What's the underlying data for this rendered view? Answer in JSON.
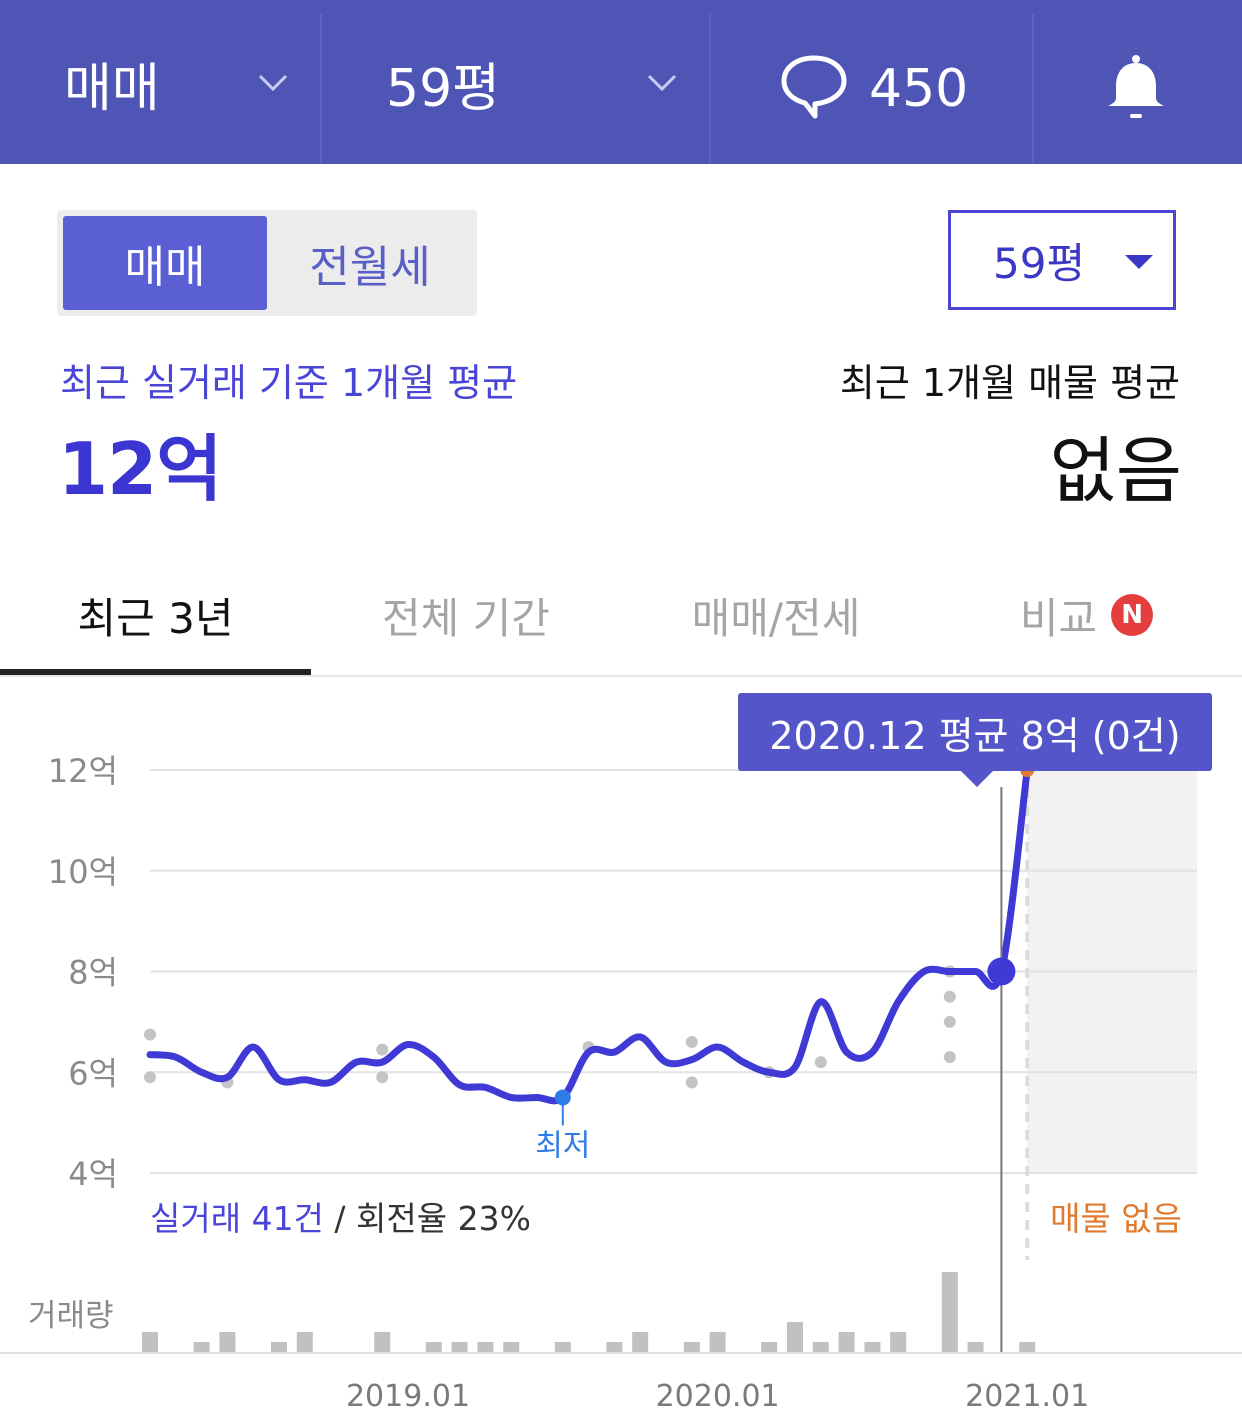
{
  "topbar": {
    "deal_type": "매매",
    "size": "59평",
    "comment_count": "450",
    "icons": [
      "chevron-down-icon",
      "speech-bubble-icon",
      "bell-icon"
    ]
  },
  "segment": {
    "active": "매매",
    "inactive": "전월세"
  },
  "size_select": {
    "value": "59평"
  },
  "summary": {
    "left_label": "최근 실거래 기준 1개월 평균",
    "left_value": "12억",
    "right_label": "최근 1개월 매물 평균",
    "right_value": "없음"
  },
  "tabs": [
    {
      "label": "최근 3년",
      "active": true
    },
    {
      "label": "전체 기간",
      "active": false
    },
    {
      "label": "매매/전세",
      "active": false
    },
    {
      "label": "비교",
      "active": false,
      "badge": "N"
    }
  ],
  "chart": {
    "tooltip": "2020.12 평균 8억 (0건)",
    "stats_trades": "실거래 41건",
    "stats_sep": " / ",
    "stats_turnover": "회전율 23%",
    "no_listing": "매물 없음",
    "volume_label": "거래량",
    "min_label": "최저"
  },
  "colors": {
    "header_bg": "#4f55b5",
    "accent": "#4a45d6",
    "line": "#3f3ad6",
    "orange": "#e07a2e",
    "badge_red": "#e53e3e"
  },
  "chart_data": {
    "type": "line",
    "y_unit": "억",
    "y_ticks": [
      "12억",
      "10억",
      "8억",
      "6억",
      "4억"
    ],
    "ylim": [
      4,
      12
    ],
    "x_ticks": [
      "2019.01",
      "2020.01",
      "2021.01"
    ],
    "series": [
      {
        "values": [
          [
            "2018.03",
            6.35
          ],
          [
            "2018.04",
            6.3
          ],
          [
            "2018.05",
            6.0
          ],
          [
            "2018.06",
            5.9
          ],
          [
            "2018.07",
            6.5
          ],
          [
            "2018.08",
            5.85
          ],
          [
            "2018.09",
            5.85
          ],
          [
            "2018.10",
            5.8
          ],
          [
            "2018.11",
            6.2
          ],
          [
            "2018.12",
            6.2
          ],
          [
            "2019.01",
            6.55
          ],
          [
            "2019.02",
            6.3
          ],
          [
            "2019.03",
            5.75
          ],
          [
            "2019.04",
            5.7
          ],
          [
            "2019.05",
            5.5
          ],
          [
            "2019.06",
            5.5
          ],
          [
            "2019.07",
            5.5
          ],
          [
            "2019.08",
            6.4
          ],
          [
            "2019.09",
            6.4
          ],
          [
            "2019.10",
            6.7
          ],
          [
            "2019.11",
            6.2
          ],
          [
            "2019.12",
            6.25
          ],
          [
            "2020.01",
            6.5
          ],
          [
            "2020.02",
            6.2
          ],
          [
            "2020.03",
            6.0
          ],
          [
            "2020.04",
            6.1
          ],
          [
            "2020.05",
            7.4
          ],
          [
            "2020.06",
            6.4
          ],
          [
            "2020.07",
            6.4
          ],
          [
            "2020.08",
            7.4
          ],
          [
            "2020.09",
            8.0
          ],
          [
            "2020.10",
            8.0
          ],
          [
            "2020.11",
            8.0
          ],
          [
            "2020.12",
            8.0
          ],
          [
            "2021.01",
            12.0
          ]
        ]
      }
    ],
    "scatter_points": [
      [
        "2018.03",
        6.75
      ],
      [
        "2018.03",
        5.9
      ],
      [
        "2018.06",
        5.8
      ],
      [
        "2018.12",
        6.45
      ],
      [
        "2018.12",
        5.9
      ],
      [
        "2019.08",
        6.5
      ],
      [
        "2019.12",
        6.6
      ],
      [
        "2019.12",
        5.8
      ],
      [
        "2020.03",
        6.0
      ],
      [
        "2020.05",
        6.2
      ],
      [
        "2020.10",
        8.0
      ],
      [
        "2020.10",
        7.5
      ],
      [
        "2020.10",
        7.0
      ],
      [
        "2020.10",
        6.3
      ]
    ],
    "highlight_point": [
      "2020.12",
      8.0
    ],
    "min_point": [
      "2019.07",
      5.5
    ],
    "volume": [
      [
        "2018.03",
        2
      ],
      [
        "2018.05",
        1
      ],
      [
        "2018.06",
        2
      ],
      [
        "2018.08",
        1
      ],
      [
        "2018.09",
        2
      ],
      [
        "2018.12",
        2
      ],
      [
        "2019.02",
        1
      ],
      [
        "2019.03",
        1
      ],
      [
        "2019.04",
        1
      ],
      [
        "2019.05",
        1
      ],
      [
        "2019.07",
        1
      ],
      [
        "2019.09",
        1
      ],
      [
        "2019.10",
        2
      ],
      [
        "2019.12",
        1
      ],
      [
        "2020.01",
        2
      ],
      [
        "2020.03",
        1
      ],
      [
        "2020.04",
        3
      ],
      [
        "2020.05",
        1
      ],
      [
        "2020.06",
        2
      ],
      [
        "2020.07",
        1
      ],
      [
        "2020.08",
        2
      ],
      [
        "2020.10",
        8
      ],
      [
        "2020.11",
        1
      ],
      [
        "2021.01",
        1
      ]
    ]
  }
}
